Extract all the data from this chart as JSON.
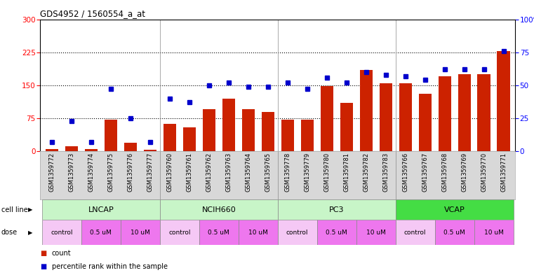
{
  "title": "GDS4952 / 1560554_a_at",
  "gsm_labels": [
    "GSM1359772",
    "GSM1359773",
    "GSM1359774",
    "GSM1359775",
    "GSM1359776",
    "GSM1359777",
    "GSM1359760",
    "GSM1359761",
    "GSM1359762",
    "GSM1359763",
    "GSM1359764",
    "GSM1359765",
    "GSM1359778",
    "GSM1359779",
    "GSM1359780",
    "GSM1359781",
    "GSM1359782",
    "GSM1359783",
    "GSM1359766",
    "GSM1359767",
    "GSM1359768",
    "GSM1359769",
    "GSM1359770",
    "GSM1359771"
  ],
  "bar_values": [
    5,
    12,
    5,
    72,
    20,
    4,
    62,
    55,
    95,
    120,
    95,
    90,
    72,
    72,
    148,
    110,
    185,
    155,
    155,
    130,
    170,
    175,
    175,
    228
  ],
  "dot_values_pct": [
    7,
    23,
    7,
    47,
    25,
    7,
    40,
    37,
    50,
    52,
    49,
    49,
    52,
    47,
    56,
    52,
    60,
    58,
    57,
    54,
    62,
    62,
    62,
    76
  ],
  "cell_line_groups": [
    {
      "name": "LNCAP",
      "start": 0,
      "end": 6,
      "color": "#c8f5c8"
    },
    {
      "name": "NCIH660",
      "start": 6,
      "end": 12,
      "color": "#c8f5c8"
    },
    {
      "name": "PC3",
      "start": 12,
      "end": 18,
      "color": "#c8f5c8"
    },
    {
      "name": "VCAP",
      "start": 18,
      "end": 24,
      "color": "#44dd44"
    }
  ],
  "dose_pattern": [
    {
      "name": "control",
      "start": 0,
      "end": 2,
      "color": "#f5c8f5"
    },
    {
      "name": "0.5 uM",
      "start": 2,
      "end": 4,
      "color": "#ee77ee"
    },
    {
      "name": "10 uM",
      "start": 4,
      "end": 6,
      "color": "#ee77ee"
    },
    {
      "name": "control",
      "start": 6,
      "end": 8,
      "color": "#f5c8f5"
    },
    {
      "name": "0.5 uM",
      "start": 8,
      "end": 10,
      "color": "#ee77ee"
    },
    {
      "name": "10 uM",
      "start": 10,
      "end": 12,
      "color": "#ee77ee"
    },
    {
      "name": "control",
      "start": 12,
      "end": 14,
      "color": "#f5c8f5"
    },
    {
      "name": "0.5 uM",
      "start": 14,
      "end": 16,
      "color": "#ee77ee"
    },
    {
      "name": "10 uM",
      "start": 16,
      "end": 18,
      "color": "#ee77ee"
    },
    {
      "name": "control",
      "start": 18,
      "end": 20,
      "color": "#f5c8f5"
    },
    {
      "name": "0.5 uM",
      "start": 20,
      "end": 22,
      "color": "#ee77ee"
    },
    {
      "name": "10 uM",
      "start": 22,
      "end": 24,
      "color": "#ee77ee"
    }
  ],
  "ylim_left": [
    0,
    300
  ],
  "ylim_right": [
    0,
    100
  ],
  "yticks_left": [
    0,
    75,
    150,
    225,
    300
  ],
  "yticks_right": [
    0,
    25,
    50,
    75,
    100
  ],
  "bar_color": "#cc2200",
  "dot_color": "#0000cc",
  "bg_color": "#ffffff",
  "xticklabel_bg": "#d8d8d8",
  "cell_line_separator_color": "#44aa44",
  "legend_count_color": "#cc2200",
  "legend_dot_color": "#0000cc"
}
